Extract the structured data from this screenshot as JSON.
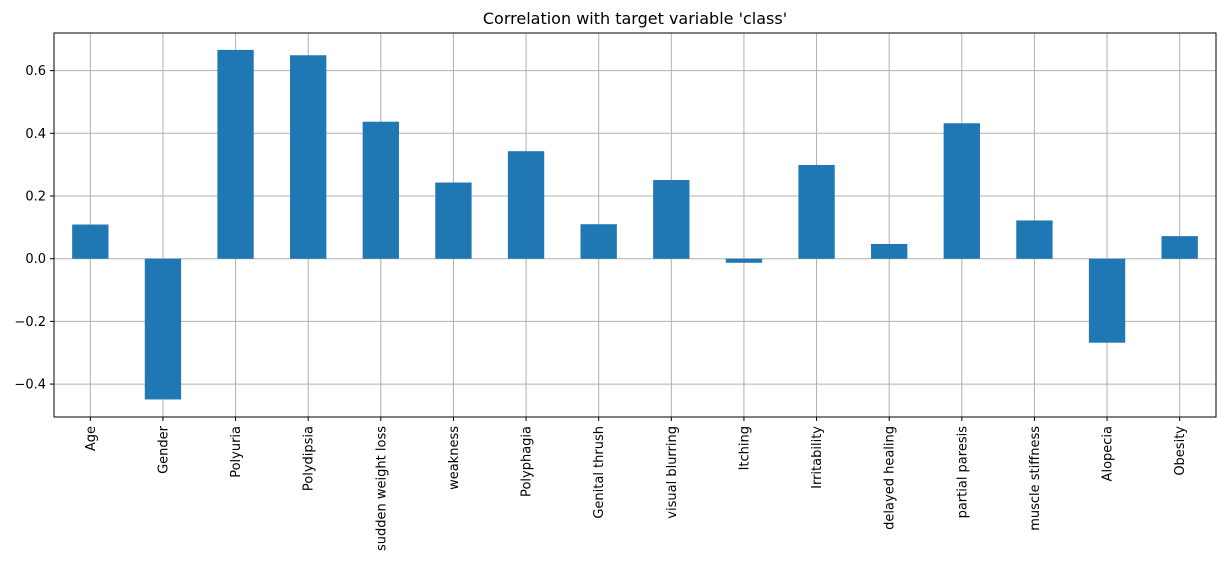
{
  "chart_data": {
    "type": "bar",
    "title": "Correlation with target variable 'class'",
    "xlabel": "",
    "ylabel": "",
    "categories": [
      "Age",
      "Gender",
      "Polyuria",
      "Polydipsia",
      "sudden weight loss",
      "weakness",
      "Polyphagia",
      "Genital thrush",
      "visual blurring",
      "Itching",
      "Irritability",
      "delayed healing",
      "partial paresis",
      "muscle stiffness",
      "Alopecia",
      "Obesity"
    ],
    "values": [
      0.109,
      -0.449,
      0.666,
      0.649,
      0.437,
      0.243,
      0.343,
      0.11,
      0.251,
      -0.013,
      0.299,
      0.047,
      0.432,
      0.122,
      -0.268,
      0.072
    ],
    "yticks": [
      -0.4,
      -0.2,
      0.0,
      0.2,
      0.4,
      0.6
    ],
    "ytick_labels": [
      "−0.4",
      "−0.2",
      "0.0",
      "0.2",
      "0.4",
      "0.6"
    ],
    "ylim": [
      -0.505,
      0.72
    ],
    "grid": true,
    "bar_color": "#1f77b4"
  }
}
